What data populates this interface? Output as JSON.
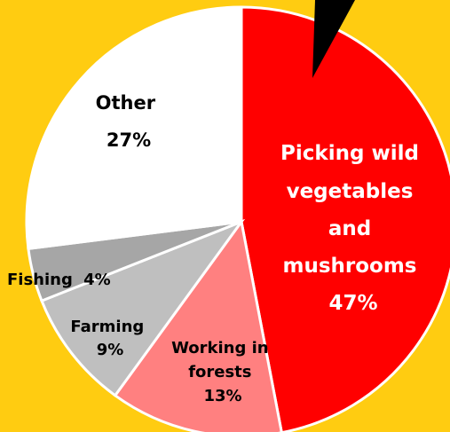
{
  "chart_data": {
    "type": "pie",
    "title": "",
    "slices": [
      {
        "label": "Picking wild vegetables and mushrooms",
        "value": 47,
        "pct": "47%",
        "color": "#FF0000",
        "text_color": "#FFFFFF"
      },
      {
        "label": "Working in forests",
        "value": 13,
        "pct": "13%",
        "color": "#FF8080",
        "text_color": "#000000"
      },
      {
        "label": "Farming",
        "value": 9,
        "pct": "9%",
        "color": "#BFBFBF",
        "text_color": "#000000"
      },
      {
        "label": "Fishing",
        "value": 4,
        "pct": "4%",
        "color": "#A6A6A6",
        "text_color": "#000000"
      },
      {
        "label": "Other",
        "value": 27,
        "pct": "27%",
        "color": "#FFFFFF",
        "text_color": "#000000"
      }
    ],
    "start": "top",
    "direction": "clockwise",
    "callout": {
      "color": "#000000"
    },
    "background": "#FFCC11"
  }
}
